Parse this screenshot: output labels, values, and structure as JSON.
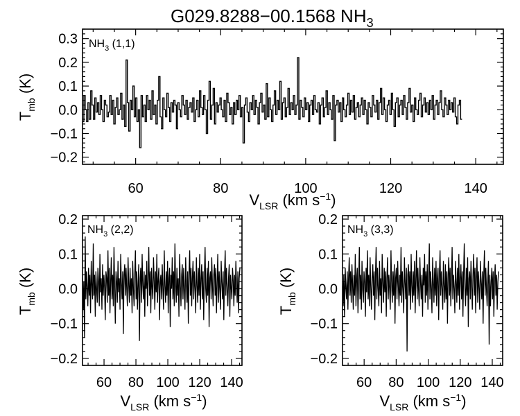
{
  "figure": {
    "title_main": "G029.8288−00.1568 NH",
    "title_sub": "3"
  },
  "chart_data": [
    {
      "id": "top",
      "type": "line",
      "step": true,
      "label_main": "NH",
      "label_sub": "3",
      "label_tail": " (1,1)",
      "xlabel_main": "V",
      "xlabel_sub": "LSR",
      "xlabel_tail": " (km s",
      "xlabel_sup": "−1",
      "xlabel_close": ")",
      "ylabel_main": "T",
      "ylabel_sub": "mb",
      "ylabel_tail": " (K)",
      "xlim": [
        47.5,
        146.5
      ],
      "ylim": [
        -0.23,
        0.34
      ],
      "xticks": [
        60,
        80,
        100,
        120,
        140
      ],
      "yticks": [
        -0.2,
        -0.1,
        0.0,
        0.1,
        0.2,
        0.3
      ],
      "ytick_labels": [
        "−0.2",
        "−0.1",
        "0.0",
        "0.1",
        "0.2",
        "0.3"
      ],
      "x_start": 47.5,
      "x_step": 0.32,
      "values": [
        -0.05,
        0.06,
        0.0,
        -0.05,
        0.03,
        -0.04,
        0.08,
        0.02,
        -0.04,
        0.05,
        -0.01,
        0.03,
        -0.02,
        0.06,
        0.0,
        -0.05,
        0.04,
        0.02,
        -0.03,
        -0.01,
        0.06,
        -0.02,
        0.04,
        -0.06,
        0.01,
        0.05,
        -0.02,
        0.0,
        0.07,
        -0.04,
        0.02,
        -0.07,
        0.21,
        0.03,
        -0.09,
        0.04,
        0.0,
        0.1,
        -0.03,
        0.05,
        -0.05,
        0.0,
        -0.16,
        0.06,
        -0.03,
        0.02,
        -0.05,
        0.06,
        0.0,
        0.04,
        -0.04,
        0.08,
        -0.02,
        0.02,
        -0.06,
        0.04,
        0.14,
        -0.03,
        -0.08,
        0.05,
        0.0,
        -0.03,
        0.07,
        0.01,
        -0.05,
        0.03,
        -0.01,
        0.04,
        0.02,
        -0.08,
        0.03,
        0.0,
        -0.03,
        0.06,
        0.02,
        -0.02,
        0.04,
        -0.04,
        0.01,
        0.03,
        -0.01,
        0.05,
        -0.05,
        0.0,
        0.04,
        -0.03,
        0.08,
        0.01,
        -0.02,
        0.06,
        0.0,
        -0.1,
        0.04,
        0.12,
        -0.04,
        0.02,
        0.09,
        -0.06,
        0.03,
        -0.01,
        0.02,
        0.05,
        0.0,
        -0.03,
        0.04,
        -0.05,
        0.07,
        0.03,
        -0.02,
        0.01,
        -0.06,
        0.03,
        -0.02,
        0.04,
        0.0,
        0.06,
        -0.03,
        0.01,
        -0.14,
        0.02,
        0.05,
        -0.01,
        -0.05,
        0.03,
        0.0,
        0.06,
        -0.02,
        0.04,
        0.01,
        -0.06,
        0.03,
        0.07,
        -0.01,
        0.02,
        -0.04,
        0.11,
        -0.03,
        0.05,
        0.0,
        -0.05,
        0.02,
        0.08,
        -0.02,
        0.04,
        0.0,
        0.12,
        -0.04,
        0.03,
        0.05,
        -0.03,
        0.01,
        0.09,
        -0.02,
        0.03,
        0.0,
        0.06,
        -0.02,
        0.02,
        0.22,
        -0.04,
        0.04,
        0.01,
        -0.03,
        0.05,
        0.0,
        0.03,
        -0.05,
        0.02,
        0.04,
        -0.02,
        0.06,
        0.0,
        -0.01,
        0.03,
        -0.06,
        0.02,
        0.05,
        -0.03,
        0.01,
        0.08,
        -0.02,
        0.03,
        0.0,
        -0.04,
        0.06,
        -0.13,
        0.02,
        0.04,
        -0.01,
        0.03,
        -0.05,
        0.05,
        0.0,
        -0.03,
        0.02,
        0.07,
        -0.02,
        0.04,
        -0.01,
        0.06,
        -0.04,
        0.01,
        0.03,
        -0.03,
        0.02,
        0.05,
        -0.02,
        0.04,
        0.0,
        -0.06,
        0.03,
        0.01,
        -0.03,
        0.06,
        0.02,
        -0.01,
        0.04,
        -0.04,
        0.03,
        0.09,
        -0.02,
        0.05,
        0.0,
        -0.05,
        0.02,
        0.04,
        -0.02,
        0.07,
        0.0,
        -0.07,
        0.03,
        0.05,
        -0.03,
        0.02,
        0.04,
        -0.02,
        0.06,
        0.01,
        -0.04,
        0.03,
        0.09,
        -0.01,
        0.02,
        -0.05,
        0.05,
        0.0,
        -0.02,
        0.04,
        0.07,
        -0.03,
        0.02,
        0.05,
        -0.01,
        0.03,
        -0.02,
        0.04,
        0.0,
        0.06,
        -0.04,
        0.02,
        0.04,
        -0.02,
        0.03,
        0.08,
        0.0,
        -0.03,
        0.05,
        0.02,
        -0.02,
        0.04,
        0.0,
        0.03,
        -0.01,
        0.05,
        -0.03,
        -0.06,
        0.02,
        0.04,
        -0.04
      ]
    },
    {
      "id": "bottom-left",
      "type": "line",
      "step": false,
      "label_main": "NH",
      "label_sub": "3",
      "label_tail": " (2,2)",
      "xlabel_main": "V",
      "xlabel_sub": "LSR",
      "xlabel_tail": " (km s",
      "xlabel_sup": "−1",
      "xlabel_close": ")",
      "ylabel_main": "T",
      "ylabel_sub": "mb",
      "ylabel_tail": " (K)",
      "xlim": [
        46.5,
        146.5
      ],
      "ylim": [
        -0.22,
        0.21
      ],
      "xticks": [
        60,
        80,
        100,
        120,
        140
      ],
      "yticks": [
        -0.2,
        -0.1,
        0.0,
        0.1,
        0.2
      ],
      "ytick_labels": [
        "−0.2",
        "−0.1",
        "0.0",
        "0.1",
        "0.2"
      ],
      "x_start": 46.5,
      "x_step": 0.42,
      "values": [
        0.03,
        -0.06,
        0.02,
        -0.14,
        0.15,
        -0.03,
        0.05,
        0.0,
        -0.05,
        0.06,
        -0.02,
        0.04,
        -0.07,
        0.08,
        0.01,
        -0.03,
        0.13,
        -0.02,
        0.04,
        -0.08,
        0.05,
        0.0,
        -0.04,
        0.06,
        0.02,
        -0.05,
        0.1,
        -0.01,
        0.03,
        -0.06,
        0.07,
        -0.02,
        0.04,
        0.0,
        -0.09,
        0.05,
        0.03,
        -0.04,
        0.11,
        -0.02,
        0.06,
        -0.07,
        0.02,
        0.09,
        -0.03,
        0.04,
        -0.05,
        0.12,
        0.0,
        -0.1,
        0.05,
        0.02,
        -0.04,
        0.08,
        -0.01,
        0.03,
        -0.06,
        0.1,
        0.02,
        -0.03,
        0.05,
        -0.13,
        0.04,
        0.07,
        -0.02,
        0.06,
        0.0,
        -0.05,
        0.09,
        0.01,
        -0.04,
        0.06,
        -0.02,
        0.03,
        -0.07,
        0.08,
        0.0,
        -0.05,
        0.04,
        0.11,
        -0.03,
        0.05,
        -0.06,
        0.02,
        0.07,
        -0.15,
        0.03,
        0.06,
        -0.04,
        0.1,
        0.01,
        -0.03,
        0.05,
        -0.08,
        0.04,
        0.0,
        0.08,
        -0.05,
        0.03,
        0.12,
        -0.02,
        0.05,
        -0.07,
        0.06,
        0.0,
        -0.03,
        0.09,
        0.02,
        -0.06,
        0.05,
        -0.01,
        0.1,
        -0.04,
        0.03,
        0.06,
        -0.09,
        0.02,
        0.04,
        -0.03,
        0.07,
        0.0,
        -0.06,
        0.11,
        0.01,
        -0.04,
        0.05,
        -0.02,
        0.08,
        -0.07,
        0.03,
        0.06,
        -0.11,
        0.04,
        0.0,
        0.09,
        -0.03,
        0.05,
        -0.05,
        0.13,
        0.01,
        -0.04,
        0.06,
        -0.02,
        0.03,
        -0.08,
        0.1,
        0.02,
        -0.05,
        0.04,
        0.07,
        -0.03,
        0.06,
        0.0,
        -0.06,
        0.09,
        0.02,
        -0.04,
        0.05,
        -0.1,
        0.04,
        0.11,
        -0.02,
        0.06,
        -0.05,
        0.03,
        0.08,
        -0.03,
        0.05,
        0.0,
        -0.07,
        0.09,
        0.01,
        -0.04,
        0.06,
        -0.02,
        0.1,
        -0.06,
        0.03,
        0.07,
        -0.03,
        0.05,
        -0.09,
        0.04,
        0.12,
        0.0,
        -0.04,
        0.06,
        -0.02,
        0.08,
        -0.11,
        0.03,
        0.05,
        -0.03,
        0.09,
        0.01,
        -0.05,
        0.04,
        0.07,
        -0.02,
        0.06,
        -0.07,
        0.02,
        0.1,
        -0.04,
        0.05,
        0.0,
        -0.06,
        0.08,
        0.02,
        -0.03,
        0.05,
        -0.09,
        0.04,
        0.11,
        -0.02,
        0.06,
        0.0,
        -0.05,
        0.03,
        0.07,
        -0.08,
        0.04,
        0.0,
        -0.03,
        0.06,
        0.02,
        -0.05,
        0.04,
        -0.02,
        0.08,
        0.01,
        -0.04,
        0.05,
        -0.07,
        0.03,
        0.06
      ]
    },
    {
      "id": "bottom-right",
      "type": "line",
      "step": false,
      "label_main": "NH",
      "label_sub": "3",
      "label_tail": " (3,3)",
      "xlabel_main": "V",
      "xlabel_sub": "LSR",
      "xlabel_tail": " (km s",
      "xlabel_sup": "−1",
      "xlabel_close": ")",
      "ylabel_main": "T",
      "ylabel_sub": "mb",
      "ylabel_tail": " (K)",
      "xlim": [
        46.5,
        146.5
      ],
      "ylim": [
        -0.22,
        0.21
      ],
      "xticks": [
        60,
        80,
        100,
        120,
        140
      ],
      "yticks": [
        -0.2,
        -0.1,
        0.0,
        0.1,
        0.2
      ],
      "ytick_labels": [
        "−0.2",
        "−0.1",
        "0.0",
        "0.1",
        "0.2"
      ],
      "x_start": 46.5,
      "x_step": 0.42,
      "values": [
        0.02,
        -0.05,
        0.04,
        -0.08,
        0.06,
        0.0,
        -0.03,
        0.05,
        -0.06,
        0.03,
        0.09,
        -0.02,
        0.05,
        -0.04,
        0.07,
        0.01,
        -0.06,
        0.04,
        -0.02,
        0.1,
        -0.05,
        0.03,
        0.06,
        -0.07,
        0.02,
        0.12,
        -0.03,
        0.04,
        -0.06,
        0.08,
        0.0,
        -0.04,
        0.05,
        0.02,
        -0.08,
        0.06,
        -0.01,
        0.11,
        -0.03,
        0.04,
        -0.05,
        0.09,
        0.01,
        -0.06,
        0.03,
        0.07,
        -0.02,
        0.05,
        -0.09,
        0.04,
        0.12,
        -0.03,
        0.06,
        0.0,
        -0.05,
        0.08,
        -0.02,
        0.03,
        -0.07,
        0.1,
        0.02,
        -0.04,
        0.06,
        -0.01,
        0.05,
        -0.08,
        0.03,
        0.09,
        -0.03,
        0.04,
        0.0,
        -0.06,
        0.11,
        0.02,
        -0.04,
        0.05,
        -0.02,
        0.07,
        -0.1,
        0.03,
        0.06,
        -0.03,
        0.08,
        0.01,
        -0.05,
        0.04,
        -0.02,
        0.12,
        -0.04,
        0.05,
        0.0,
        -0.07,
        0.09,
        0.02,
        -0.03,
        0.06,
        -0.18,
        0.04,
        0.07,
        -0.02,
        0.05,
        -0.06,
        0.1,
        0.01,
        -0.04,
        0.05,
        -0.02,
        0.08,
        -0.07,
        0.03,
        0.11,
        -0.03,
        0.06,
        0.0,
        -0.05,
        0.09,
        0.02,
        -0.03,
        0.04,
        -0.08,
        0.06,
        0.01,
        0.1,
        -0.04,
        0.05,
        -0.02,
        0.07,
        -0.06,
        0.03,
        0.13,
        -0.03,
        0.05,
        0.0,
        -0.07,
        0.09,
        0.02,
        -0.04,
        0.06,
        -0.02,
        0.08,
        -0.05,
        0.03,
        0.06,
        -0.09,
        0.04,
        0.11,
        -0.02,
        0.05,
        0.0,
        -0.06,
        0.08,
        0.01,
        -0.04,
        0.07,
        -0.03,
        0.05,
        -0.1,
        0.04,
        0.09,
        -0.02,
        0.06,
        -0.05,
        0.03,
        0.12,
        -0.03,
        0.04,
        0.0,
        -0.07,
        0.08,
        0.02,
        -0.04,
        0.06,
        -0.02,
        0.1,
        -0.06,
        0.03,
        0.07,
        -0.03,
        0.05,
        -0.08,
        0.04,
        0.13,
        0.0,
        -0.05,
        0.06,
        -0.02,
        0.09,
        -0.11,
        0.03,
        0.05,
        -0.03,
        0.08,
        0.01,
        -0.06,
        0.04,
        0.1,
        -0.02,
        0.06,
        -0.07,
        0.03,
        0.09,
        -0.04,
        0.05,
        0.0,
        -0.06,
        0.08,
        0.02,
        -0.03,
        0.05,
        -0.1,
        0.04,
        0.11,
        -0.02,
        0.06,
        0.0,
        -0.05,
        0.03,
        0.08,
        -0.16,
        0.04,
        -0.05,
        0.02,
        0.06,
        -0.03,
        0.05,
        -0.08,
        0.03,
        0.07,
        -0.02,
        0.04,
        -0.06,
        0.02,
        0.05
      ]
    }
  ]
}
